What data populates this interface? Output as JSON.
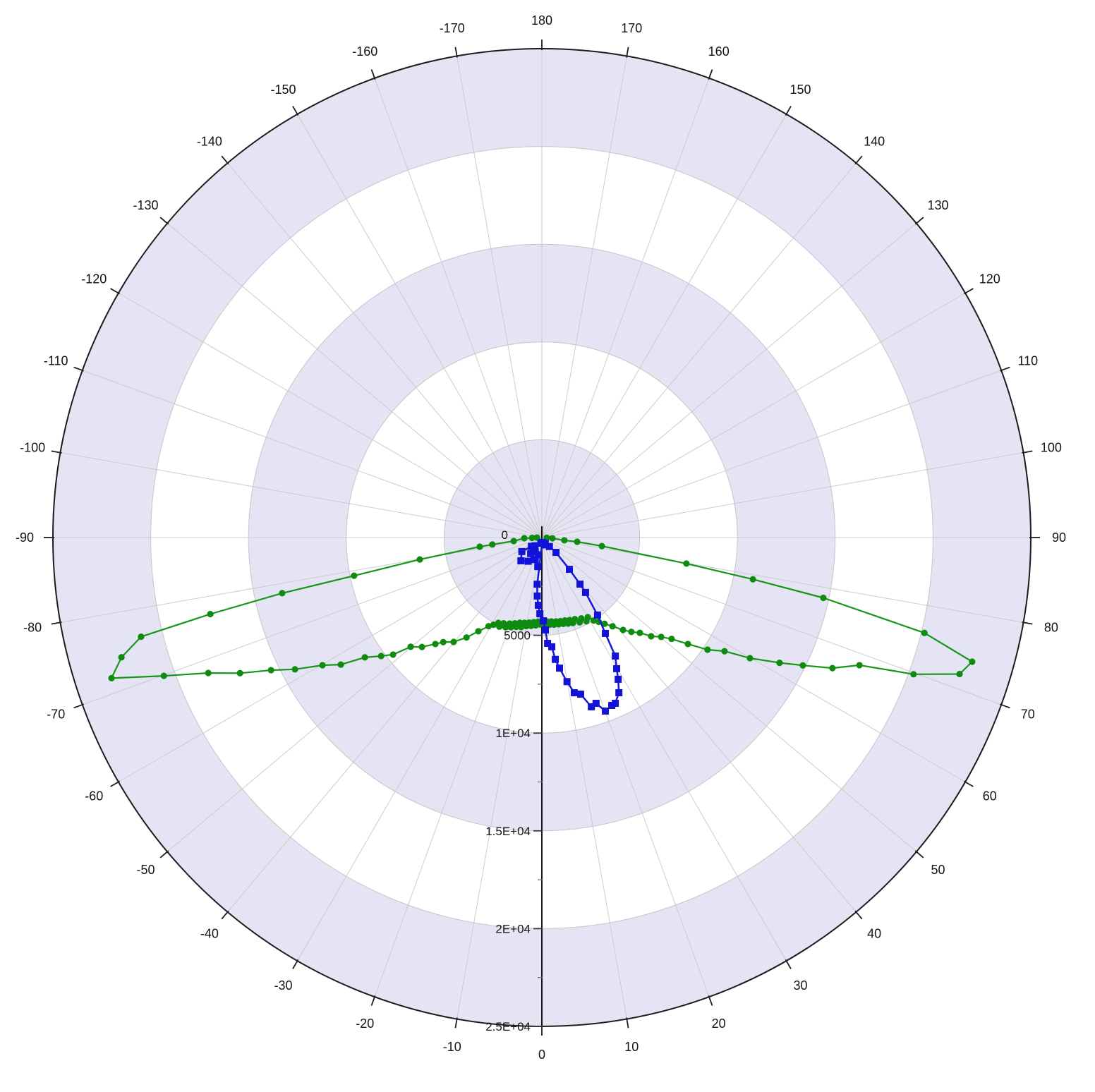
{
  "chart_data": {
    "type": "line",
    "subtype": "polar",
    "title": "",
    "angular_axis": {
      "unit": "degrees",
      "orientation": "0 at bottom, 180 at top, positive clockwise-right",
      "tick_step": 10,
      "labels": [
        "-170",
        "-160",
        "-150",
        "-140",
        "-130",
        "-120",
        "-110",
        "-100",
        "-90",
        "-80",
        "-70",
        "-60",
        "-50",
        "-40",
        "-30",
        "-20",
        "-10",
        "0",
        "10",
        "20",
        "30",
        "40",
        "50",
        "60",
        "70",
        "80",
        "90",
        "100",
        "110",
        "120",
        "130",
        "140",
        "150",
        "160",
        "170",
        "180"
      ],
      "label_angles": [
        -170,
        -160,
        -150,
        -140,
        -130,
        -120,
        -110,
        -100,
        -90,
        -80,
        -70,
        -60,
        -50,
        -40,
        -30,
        -20,
        -10,
        0,
        10,
        20,
        30,
        40,
        50,
        60,
        70,
        80,
        90,
        100,
        110,
        120,
        130,
        140,
        150,
        160,
        170,
        180
      ]
    },
    "radial_axis": {
      "min": 0,
      "max": 25000,
      "ring_step": 5000,
      "minor_tick_step": 2500,
      "labels": [
        {
          "value": 0,
          "label": "0"
        },
        {
          "value": 5000,
          "label": "5000"
        },
        {
          "value": 10000,
          "label": "1E+04"
        },
        {
          "value": 15000,
          "label": "1.5E+04"
        },
        {
          "value": 20000,
          "label": "2E+04"
        },
        {
          "value": 25000,
          "label": "2.5E+04"
        }
      ]
    },
    "grid": {
      "spokes_every_deg": 10,
      "alternating_bands": true
    },
    "legend": {
      "visible": false
    },
    "series": [
      {
        "name": "green-pattern",
        "marker": "circle",
        "color": "#169616",
        "marker_color": "#0f8c0f",
        "points": [
          [
            87,
            250
          ],
          [
            86,
            540
          ],
          [
            83,
            1160
          ],
          [
            83.2,
            1820
          ],
          [
            81.9,
            3100
          ],
          [
            79.8,
            7510
          ],
          [
            78.8,
            11000
          ],
          [
            77.9,
            14720
          ],
          [
            76.0,
            20160
          ],
          [
            73.9,
            22900
          ],
          [
            71.9,
            22470
          ],
          [
            69.8,
            20250
          ],
          [
            68.1,
            17500
          ],
          [
            65.8,
            16290
          ],
          [
            63.9,
            14860
          ],
          [
            62.2,
            13740
          ],
          [
            59.9,
            12300
          ],
          [
            58.1,
            11000
          ],
          [
            55.9,
            10230
          ],
          [
            53.9,
            9240
          ],
          [
            52.0,
            8420
          ],
          [
            50.2,
            7940
          ],
          [
            47.9,
            7530
          ],
          [
            45.8,
            6990
          ],
          [
            43.5,
            6650
          ],
          [
            41.3,
            6290
          ],
          [
            38.5,
            5800
          ],
          [
            36,
            5450
          ],
          [
            34,
            5200
          ],
          [
            32,
            5000
          ],
          [
            30,
            4700
          ],
          [
            28,
            4850
          ],
          [
            26,
            4600
          ],
          [
            24,
            4750
          ],
          [
            22,
            4500
          ],
          [
            20,
            4650
          ],
          [
            18.5,
            4450
          ],
          [
            17,
            4600
          ],
          [
            15.5,
            4400
          ],
          [
            14,
            4550
          ],
          [
            12.5,
            4380
          ],
          [
            11,
            4520
          ],
          [
            9.5,
            4350
          ],
          [
            8,
            4500
          ],
          [
            6.5,
            4320
          ],
          [
            5,
            4480
          ],
          [
            3.5,
            4300
          ],
          [
            2,
            4500
          ],
          [
            0.5,
            4350
          ],
          [
            -1,
            4450
          ],
          [
            -2.5,
            4300
          ],
          [
            -4,
            4500
          ],
          [
            -5.5,
            4350
          ],
          [
            -7,
            4550
          ],
          [
            -8.5,
            4400
          ],
          [
            -10,
            4600
          ],
          [
            -11.5,
            4450
          ],
          [
            -13,
            4700
          ],
          [
            -14.5,
            4500
          ],
          [
            -16,
            4750
          ],
          [
            -17.5,
            4600
          ],
          [
            -19,
            4850
          ],
          [
            -20.5,
            4700
          ],
          [
            -22,
            4950
          ],
          [
            -24,
            4800
          ],
          [
            -25.5,
            5050
          ],
          [
            -27,
            4900
          ],
          [
            -29,
            5100
          ],
          [
            -31,
            5290
          ],
          [
            -34.1,
            5790
          ],
          [
            -37,
            6400
          ],
          [
            -40.2,
            6990
          ],
          [
            -43.3,
            7350
          ],
          [
            -45,
            7700
          ],
          [
            -47.6,
            8300
          ],
          [
            -50.2,
            8730
          ],
          [
            -51.8,
            9680
          ],
          [
            -53.6,
            10210
          ],
          [
            -55.9,
            10930
          ],
          [
            -57.7,
            12160
          ],
          [
            -59.8,
            12980
          ],
          [
            -61.9,
            14310
          ],
          [
            -63.9,
            15420
          ],
          [
            -65.8,
            16920
          ],
          [
            -67.9,
            18410
          ],
          [
            -69.9,
            20580
          ],
          [
            -71.9,
            23150
          ],
          [
            -74.1,
            22350
          ],
          [
            -76.1,
            21110
          ],
          [
            -77.0,
            17400
          ],
          [
            -77.9,
            13580
          ],
          [
            -78.5,
            9800
          ],
          [
            -79.8,
            6340
          ],
          [
            -81.6,
            3210
          ],
          [
            -82,
            2560
          ],
          [
            -82.9,
            1450
          ],
          [
            -87.7,
            900
          ],
          [
            -88,
            500
          ],
          [
            -89,
            250
          ]
        ]
      },
      {
        "name": "blue-lobe",
        "marker": "square",
        "color": "#1616dc",
        "marker_color": "#1212d8",
        "points": [
          [
            -8,
            1500
          ],
          [
            -12,
            900
          ],
          [
            -20,
            1200
          ],
          [
            -30,
            1400
          ],
          [
            -42,
            1600
          ],
          [
            -55,
            1250
          ],
          [
            -50,
            700
          ],
          [
            -35,
            1000
          ],
          [
            -25,
            800
          ],
          [
            -40,
            550
          ],
          [
            -10,
            300
          ],
          [
            20,
            400
          ],
          [
            5,
            250
          ],
          [
            -5.7,
            2400
          ],
          [
            -4.5,
            3000
          ],
          [
            -3.0,
            3470
          ],
          [
            -1.5,
            3900
          ],
          [
            1.0,
            4260
          ],
          [
            2.2,
            4730
          ],
          [
            3.1,
            5420
          ],
          [
            5.2,
            5610
          ],
          [
            6.3,
            6270
          ],
          [
            7.7,
            6740
          ],
          [
            9.9,
            7480
          ],
          [
            11.8,
            8110
          ],
          [
            13.9,
            8250
          ],
          [
            16.3,
            9020
          ],
          [
            18.1,
            8920
          ],
          [
            20.1,
            9450
          ],
          [
            22.6,
            9300
          ],
          [
            23.9,
            9270
          ],
          [
            26.4,
            8860
          ],
          [
            28.3,
            8230
          ],
          [
            29.7,
            7720
          ],
          [
            31.8,
            7130
          ],
          [
            33.5,
            5880
          ],
          [
            35.7,
            4880
          ],
          [
            38.5,
            3590
          ],
          [
            39.3,
            3080
          ],
          [
            40.9,
            2150
          ],
          [
            43.6,
            1050
          ],
          [
            40,
            600
          ],
          [
            30,
            350
          ]
        ]
      }
    ]
  },
  "colors": {
    "band_shaded": "#e4e4f4",
    "band_plain": "#ffffff",
    "grid_line": "#cccccc",
    "ring_line": "#c6c6c6",
    "outer_circle": "#1c1c1c",
    "axis_line": "#000000",
    "tick": "#1c1c1c",
    "label_text": "#141414",
    "background": "#ffffff"
  }
}
